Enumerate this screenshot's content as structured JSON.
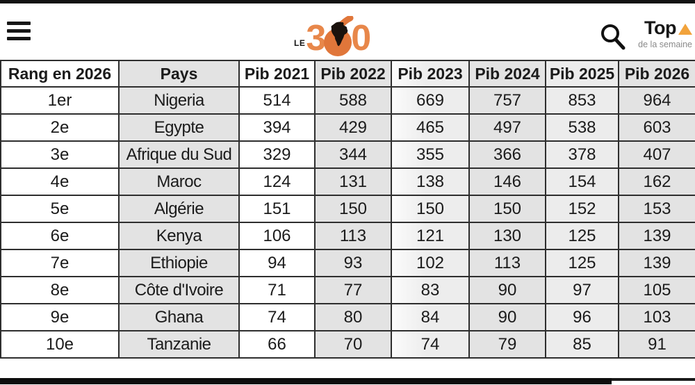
{
  "header": {
    "menu_tooltip": "menu",
    "logo": {
      "le": "LE",
      "digit3": "3",
      "digit0": "0",
      "orange": "#E8874A",
      "dark_orange": "#E0763A",
      "africa_color": "#1a120d"
    },
    "top_week": {
      "title": "Top",
      "subtitle": "de la semaine",
      "triangle_color": "#F2A33C"
    }
  },
  "table": {
    "columns": [
      {
        "label": "Rang en 2026",
        "bg": "#ffffff"
      },
      {
        "label": "Pays",
        "bg": "#e3e3e3"
      },
      {
        "label": "Pib 2021",
        "bg": "#ffffff"
      },
      {
        "label": "Pib 2022",
        "bg": "#e3e3e3"
      },
      {
        "label": "Pib 2023",
        "bg": "fade"
      },
      {
        "label": "Pib 2024",
        "bg": "#e3e3e3"
      },
      {
        "label": "Pib 2025",
        "bg": "#ececec"
      },
      {
        "label": "Pib 2026",
        "bg": "#e3e3e3"
      }
    ],
    "rows": [
      {
        "rank": "1er",
        "country": "Nigeria",
        "values": [
          514,
          588,
          669,
          757,
          853,
          964
        ]
      },
      {
        "rank": "2e",
        "country": "Egypte",
        "values": [
          394,
          429,
          465,
          497,
          538,
          603
        ]
      },
      {
        "rank": "3e",
        "country": "Afrique du Sud",
        "values": [
          329,
          344,
          355,
          366,
          378,
          407
        ]
      },
      {
        "rank": "4e",
        "country": "Maroc",
        "values": [
          124,
          131,
          138,
          146,
          154,
          162
        ]
      },
      {
        "rank": "5e",
        "country": "Algérie",
        "values": [
          151,
          150,
          150,
          150,
          152,
          153
        ]
      },
      {
        "rank": "6e",
        "country": "Kenya",
        "values": [
          106,
          113,
          121,
          130,
          125,
          139
        ]
      },
      {
        "rank": "7e",
        "country": "Ethiopie",
        "values": [
          94,
          93,
          102,
          113,
          125,
          139
        ]
      },
      {
        "rank": "8e",
        "country": "Côte d'Ivoire",
        "values": [
          71,
          77,
          83,
          90,
          97,
          105
        ]
      },
      {
        "rank": "9e",
        "country": "Ghana",
        "values": [
          74,
          80,
          84,
          90,
          96,
          103
        ]
      },
      {
        "rank": "10e",
        "country": "Tanzanie",
        "values": [
          66,
          70,
          74,
          79,
          85,
          91
        ]
      }
    ]
  }
}
